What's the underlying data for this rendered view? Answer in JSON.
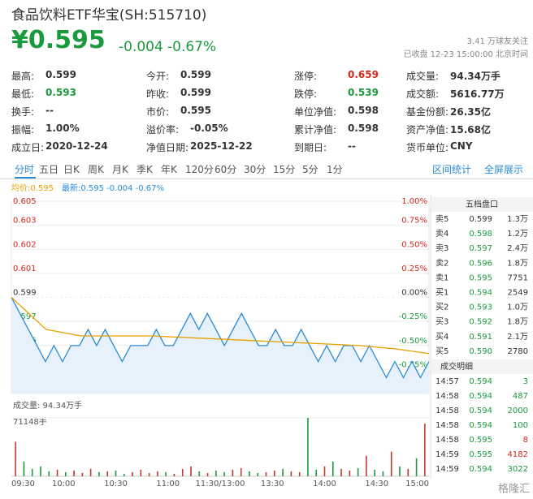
{
  "header": {
    "title": "食品饮料ETF华宝(SH:515710)",
    "price": "¥0.595",
    "change": "-0.004",
    "change_pct": "-0.67%",
    "followers": "3.41 万球友关注",
    "status": "已收盘 12-23 15:00:00 北京时间"
  },
  "stats": [
    [
      {
        "label": "最高:",
        "value": "0.599"
      },
      {
        "label": "今开:",
        "value": "0.599"
      },
      {
        "label": "涨停:",
        "value": "0.659",
        "color": "#d4281c"
      },
      {
        "label": "成交量:",
        "value": "94.34万手"
      }
    ],
    [
      {
        "label": "最低:",
        "value": "0.593",
        "color": "#1a9a3c"
      },
      {
        "label": "昨收:",
        "value": "0.599"
      },
      {
        "label": "跌停:",
        "value": "0.539",
        "color": "#1a9a3c"
      },
      {
        "label": "成交额:",
        "value": "5616.77万"
      }
    ],
    [
      {
        "label": "换手:",
        "value": "--"
      },
      {
        "label": "市价:",
        "value": "0.595"
      },
      {
        "label": "单位净值:",
        "value": "0.598"
      },
      {
        "label": "基金份额:",
        "value": "26.35亿"
      }
    ],
    [
      {
        "label": "振幅:",
        "value": "1.00%"
      },
      {
        "label": "溢价率:",
        "value": "-0.05%"
      },
      {
        "label": "累计净值:",
        "value": "0.598"
      },
      {
        "label": "资产净值:",
        "value": "15.68亿"
      }
    ],
    [
      {
        "label": "成立日:",
        "value": "2020-12-24"
      },
      {
        "label": "净值日期:",
        "value": "2025-12-22"
      },
      {
        "label": "到期日:",
        "value": "--"
      },
      {
        "label": "货币单位:",
        "value": "CNY"
      }
    ]
  ],
  "tabs": {
    "items": [
      "分时",
      "五日",
      "日K",
      "周K",
      "月K",
      "季K",
      "年K",
      "120分",
      "60分",
      "30分",
      "15分",
      "5分",
      "1分"
    ],
    "active": 0,
    "links": [
      "区间统计",
      "全屏展示"
    ]
  },
  "chart": {
    "legend": {
      "avg": "均价:0.595",
      "latest": "最新:0.595 -0.004 -0.67%"
    },
    "ylim": [
      0.59301,
      0.60499
    ],
    "yticks": [
      {
        "value": 0.60499,
        "label": "0.605"
      },
      {
        "value": 0.60349,
        "label": "0.603"
      },
      {
        "value": 0.60199,
        "label": "0.602"
      },
      {
        "value": 0.6005,
        "label": "0.601"
      },
      {
        "value": 0.599,
        "label": "0.599"
      },
      {
        "value": 0.5975,
        "label": "0.597"
      },
      {
        "value": 0.59601,
        "label": "0.596"
      },
      {
        "value": 0.59451,
        "label": "0.595"
      },
      {
        "value": 0.59301,
        "label": "0.593"
      }
    ],
    "y2lim": [
      -1,
      1
    ],
    "y2ticks": [
      {
        "value": 1,
        "label": "1.00%"
      },
      {
        "value": 0.75,
        "label": "0.75%"
      },
      {
        "value": 0.5,
        "label": "0.50%"
      },
      {
        "value": 0.25,
        "label": "0.25%"
      },
      {
        "value": 0,
        "label": "0.00%"
      },
      {
        "value": -0.25,
        "label": "-0.25%"
      },
      {
        "value": -0.5,
        "label": "-0.50%"
      },
      {
        "value": -0.75,
        "label": "-0.75%"
      },
      {
        "value": -1,
        "label": "-1.00%"
      }
    ],
    "price": [
      0.599,
      0.598,
      0.597,
      0.596,
      0.595,
      0.596,
      0.595,
      0.596,
      0.596,
      0.597,
      0.596,
      0.597,
      0.596,
      0.595,
      0.596,
      0.596,
      0.596,
      0.597,
      0.596,
      0.596,
      0.597,
      0.598,
      0.597,
      0.598,
      0.597,
      0.596,
      0.597,
      0.598,
      0.597,
      0.596,
      0.596,
      0.597,
      0.596,
      0.596,
      0.597,
      0.596,
      0.595,
      0.596,
      0.595,
      0.596,
      0.596,
      0.595,
      0.596,
      0.595,
      0.594,
      0.595,
      0.594,
      0.595,
      0.594,
      0.595
    ],
    "avg": [
      0.599,
      0.597,
      0.5966,
      0.5966,
      0.5966,
      0.5965,
      0.5964,
      0.5963,
      0.5962,
      0.5961,
      0.596,
      0.5958,
      0.5955
    ],
    "xlabels": [
      "09:30",
      "10:00",
      "10:30",
      "11:00",
      "11:30/13:00",
      "13:30",
      "14:00",
      "14:30",
      "15:00"
    ],
    "volume_label": "成交量: 94.34万手",
    "volume_top": {
      "value": 71148,
      "label": "71148手"
    },
    "volume": [
      42000,
      18000,
      9000,
      12000,
      6000,
      8000,
      5000,
      7000,
      4000,
      9000,
      5000,
      6000,
      7000,
      3000,
      5000,
      8000,
      4000,
      6000,
      5000,
      3000,
      9000,
      12000,
      6000,
      4000,
      7000,
      5000,
      8000,
      10000,
      6000,
      4000,
      5000,
      7000,
      9000,
      6000,
      5000,
      71148,
      8000,
      12000,
      18000,
      9000,
      7000,
      10000,
      25000,
      8000,
      6000,
      30000,
      12000,
      9000,
      22000,
      64000
    ]
  },
  "order_book": {
    "title": "五档盘口",
    "rows": [
      [
        "卖5",
        "0.599",
        "1.3万"
      ],
      [
        "卖4",
        "0.598",
        "1.2万"
      ],
      [
        "卖3",
        "0.597",
        "2.4万"
      ],
      [
        "卖2",
        "0.596",
        "1.8万"
      ],
      [
        "卖1",
        "0.595",
        "7751"
      ],
      [
        "买1",
        "0.594",
        "2549"
      ],
      [
        "买2",
        "0.593",
        "1.0万"
      ],
      [
        "买3",
        "0.592",
        "1.8万"
      ],
      [
        "买4",
        "0.591",
        "2.1万"
      ],
      [
        "买5",
        "0.590",
        "2780"
      ]
    ]
  },
  "trades": {
    "title": "成交明细",
    "rows": [
      {
        "time": "14:57",
        "price": "0.594",
        "volume": "3",
        "color": "#1a9a3c"
      },
      {
        "time": "14:58",
        "price": "0.594",
        "volume": "487",
        "color": "#1a9a3c"
      },
      {
        "time": "14:58",
        "price": "0.594",
        "volume": "2000",
        "color": "#1a9a3c"
      },
      {
        "time": "14:58",
        "price": "0.594",
        "volume": "100",
        "color": "#1a9a3c"
      },
      {
        "time": "14:58",
        "price": "0.595",
        "volume": "8",
        "color": "#d4281c"
      },
      {
        "time": "14:59",
        "price": "0.595",
        "volume": "4182",
        "color": "#d4281c"
      },
      {
        "time": "14:59",
        "price": "0.594",
        "volume": "3022",
        "color": "#1a9a3c"
      }
    ]
  },
  "watermark": "格隆汇"
}
